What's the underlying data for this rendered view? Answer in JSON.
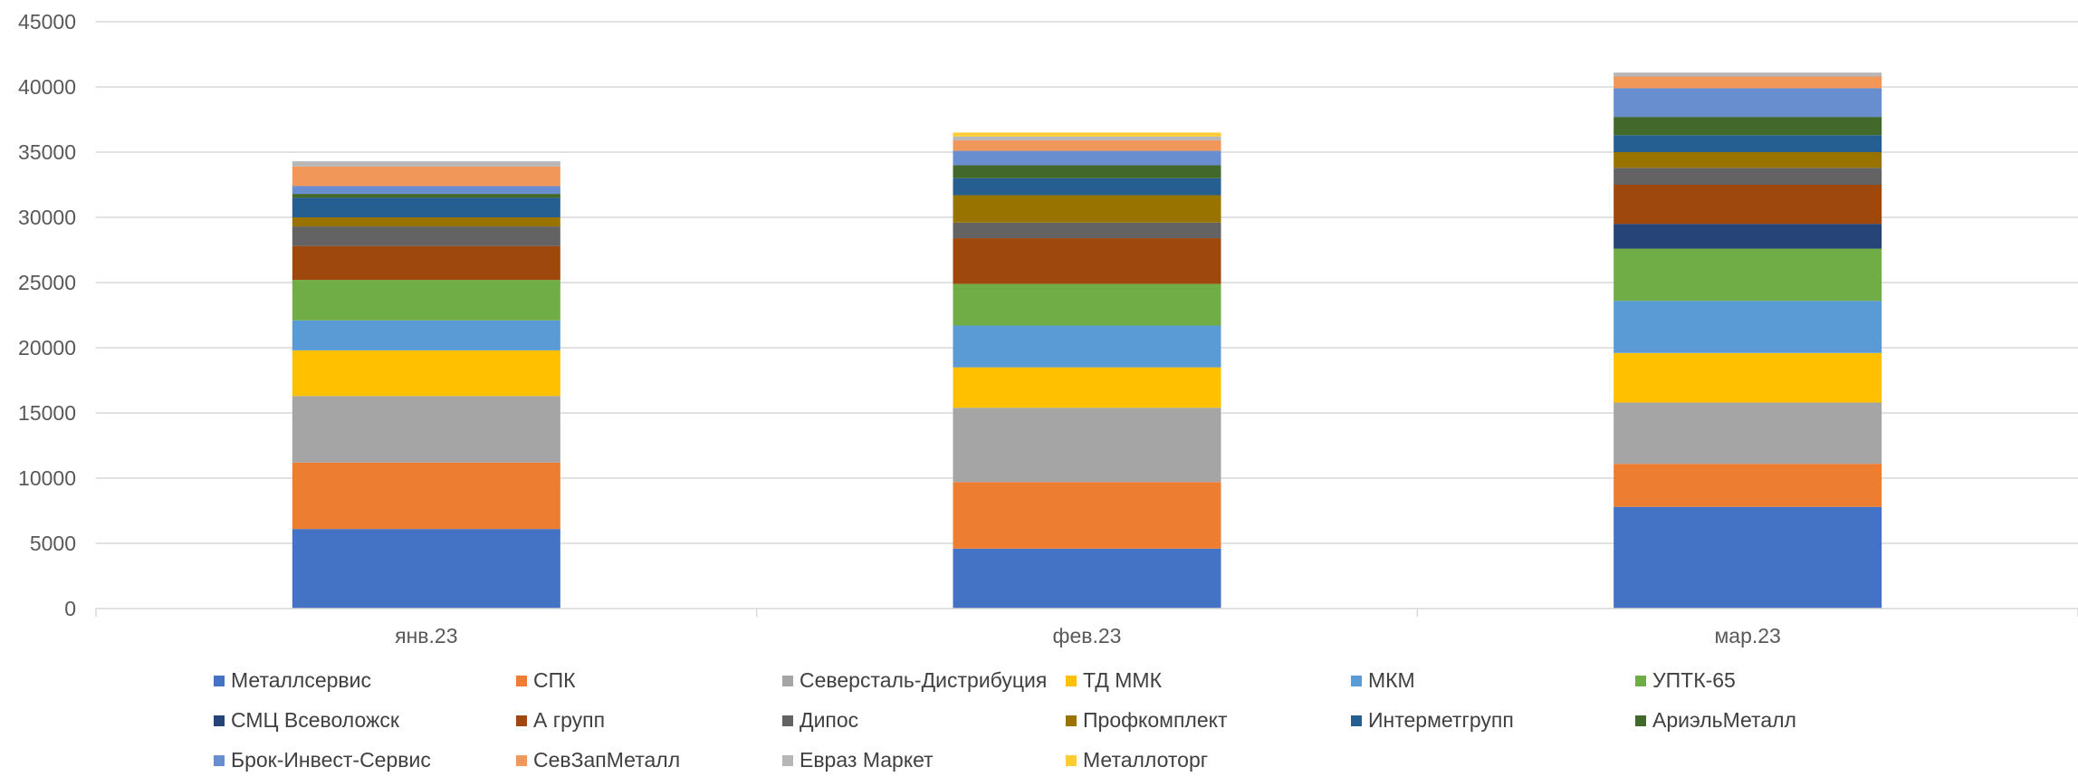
{
  "chart_data": {
    "type": "bar",
    "stacked": true,
    "categories": [
      "янв.23",
      "фев.23",
      "мар.23"
    ],
    "ylim": [
      0,
      45000
    ],
    "yticks": [
      0,
      5000,
      10000,
      15000,
      20000,
      25000,
      30000,
      35000,
      40000,
      45000
    ],
    "grid": true,
    "legend_position": "bottom",
    "series": [
      {
        "name": "Металлсервис",
        "color": "#4472C4",
        "values": [
          6100,
          4600,
          7800
        ]
      },
      {
        "name": "СПК",
        "color": "#ED7D31",
        "values": [
          5100,
          5100,
          3300
        ]
      },
      {
        "name": "Северсталь-Дистрибуция",
        "color": "#A5A5A5",
        "values": [
          5100,
          5700,
          4700
        ]
      },
      {
        "name": "ТД ММК",
        "color": "#FFC000",
        "values": [
          3500,
          3100,
          3800
        ]
      },
      {
        "name": "МКМ",
        "color": "#5B9BD5",
        "values": [
          2300,
          3200,
          4000
        ]
      },
      {
        "name": "УПТК-65",
        "color": "#70AD47",
        "values": [
          3100,
          3200,
          4000
        ]
      },
      {
        "name": "СМЦ Всеволожск",
        "color": "#264478",
        "values": [
          0,
          0,
          1900
        ]
      },
      {
        "name": "А групп",
        "color": "#9E480E",
        "values": [
          2600,
          3500,
          3000
        ]
      },
      {
        "name": "Дипос",
        "color": "#636363",
        "values": [
          1500,
          1200,
          1300
        ]
      },
      {
        "name": "Профкомплект",
        "color": "#997300",
        "values": [
          700,
          2100,
          1200
        ]
      },
      {
        "name": "Интерметгрупп",
        "color": "#255E91",
        "values": [
          1500,
          1300,
          1300
        ]
      },
      {
        "name": "АриэльМеталл",
        "color": "#43682B",
        "values": [
          300,
          1000,
          1400
        ]
      },
      {
        "name": "Брок-Инвест-Сервис",
        "color": "#698ED0",
        "values": [
          600,
          1100,
          2200
        ]
      },
      {
        "name": "СевЗапМеталл",
        "color": "#F1975A",
        "values": [
          1500,
          800,
          900
        ]
      },
      {
        "name": "Евраз Маркет",
        "color": "#B7B7B7",
        "values": [
          400,
          300,
          300
        ]
      },
      {
        "name": "Металлоторг",
        "color": "#FFCD33",
        "values": [
          0,
          300,
          0
        ]
      }
    ]
  }
}
